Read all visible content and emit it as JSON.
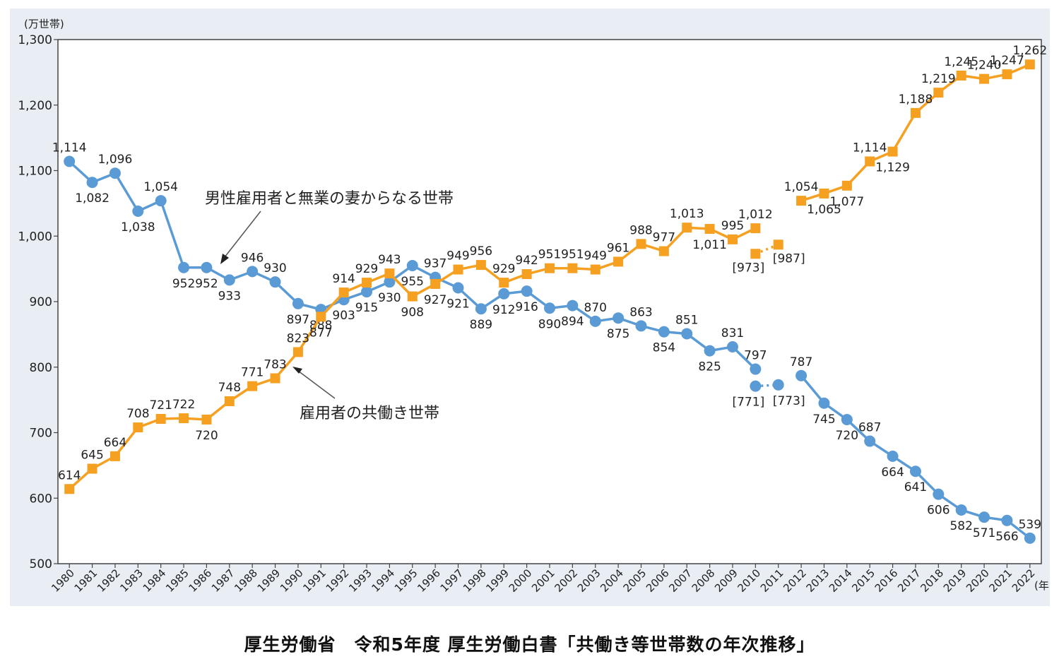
{
  "chart_data": {
    "type": "line",
    "unit_label": "(万世帯)",
    "x_unit_label": "(年)",
    "ylim": [
      500,
      1300
    ],
    "y_ticks": [
      "500",
      "600",
      "700",
      "800",
      "900",
      "1,000",
      "1,100",
      "1,200",
      "1,300"
    ],
    "x": [
      "1980",
      "1981",
      "1982",
      "1983",
      "1984",
      "1985",
      "1986",
      "1987",
      "1988",
      "1989",
      "1990",
      "1991",
      "1992",
      "1993",
      "1994",
      "1995",
      "1996",
      "1997",
      "1998",
      "1999",
      "2000",
      "2001",
      "2002",
      "2003",
      "2004",
      "2005",
      "2006",
      "2007",
      "2008",
      "2009",
      "2010",
      "2011",
      "2012",
      "2013",
      "2014",
      "2015",
      "2016",
      "2017",
      "2018",
      "2019",
      "2020",
      "2021",
      "2022"
    ],
    "grid": false,
    "series": [
      {
        "name": "男性雇用者と無業の妻からなる世帯",
        "color": "#5b9bd5",
        "marker": "circle",
        "values": [
          1114,
          1082,
          1096,
          1038,
          1054,
          952,
          952,
          933,
          946,
          930,
          897,
          888,
          903,
          915,
          930,
          955,
          937,
          921,
          889,
          912,
          916,
          890,
          894,
          870,
          875,
          863,
          854,
          851,
          825,
          831,
          797,
          null,
          787,
          745,
          720,
          687,
          664,
          641,
          606,
          582,
          571,
          566,
          539
        ],
        "labels": [
          "1,114",
          "1,082",
          "1,096",
          "1,038",
          "1,054",
          "952",
          "952",
          "933",
          "946",
          "930",
          "897",
          "888",
          "903",
          "915",
          "930",
          "955",
          "937",
          "921",
          "889",
          "912",
          "916",
          "890",
          "894",
          "870",
          "875",
          "863",
          "854",
          "851",
          "825",
          "831",
          "797",
          "",
          "787",
          "745",
          "720",
          "687",
          "664",
          "641",
          "606",
          "582",
          "571",
          "566",
          "539"
        ],
        "bracket_points": [
          {
            "x": "2010",
            "value": 771,
            "label": "[771]"
          },
          {
            "x": "2011",
            "value": 773,
            "label": "[773]"
          }
        ]
      },
      {
        "name": "雇用者の共働き世帯",
        "color": "#f5a020",
        "marker": "square",
        "values": [
          614,
          645,
          664,
          708,
          721,
          722,
          720,
          748,
          771,
          783,
          823,
          877,
          914,
          929,
          943,
          908,
          927,
          949,
          956,
          929,
          942,
          951,
          951,
          949,
          961,
          988,
          977,
          1013,
          1011,
          995,
          1012,
          null,
          1054,
          1065,
          1077,
          1114,
          1129,
          1188,
          1219,
          1245,
          1240,
          1247,
          1262
        ],
        "labels": [
          "614",
          "645",
          "664",
          "708",
          "721",
          "722",
          "720",
          "748",
          "771",
          "783",
          "823",
          "877",
          "914",
          "929",
          "943",
          "908",
          "927",
          "949",
          "956",
          "929",
          "942",
          "951",
          "951",
          "949",
          "961",
          "988",
          "977",
          "1,013",
          "1,011",
          "995",
          "1,012",
          "",
          "1,054",
          "1,065",
          "1,077",
          "1,114",
          "1,129",
          "1,188",
          "1,219",
          "1,245",
          "1,240",
          "1,247",
          "1,262"
        ],
        "bracket_points": [
          {
            "x": "2010",
            "value": 973,
            "label": "[973]"
          },
          {
            "x": "2011",
            "value": 987,
            "label": "[987]"
          }
        ]
      }
    ]
  },
  "caption": "厚生労働省　令和5年度 厚生労働白書「共働き等世帯数の年次推移」"
}
